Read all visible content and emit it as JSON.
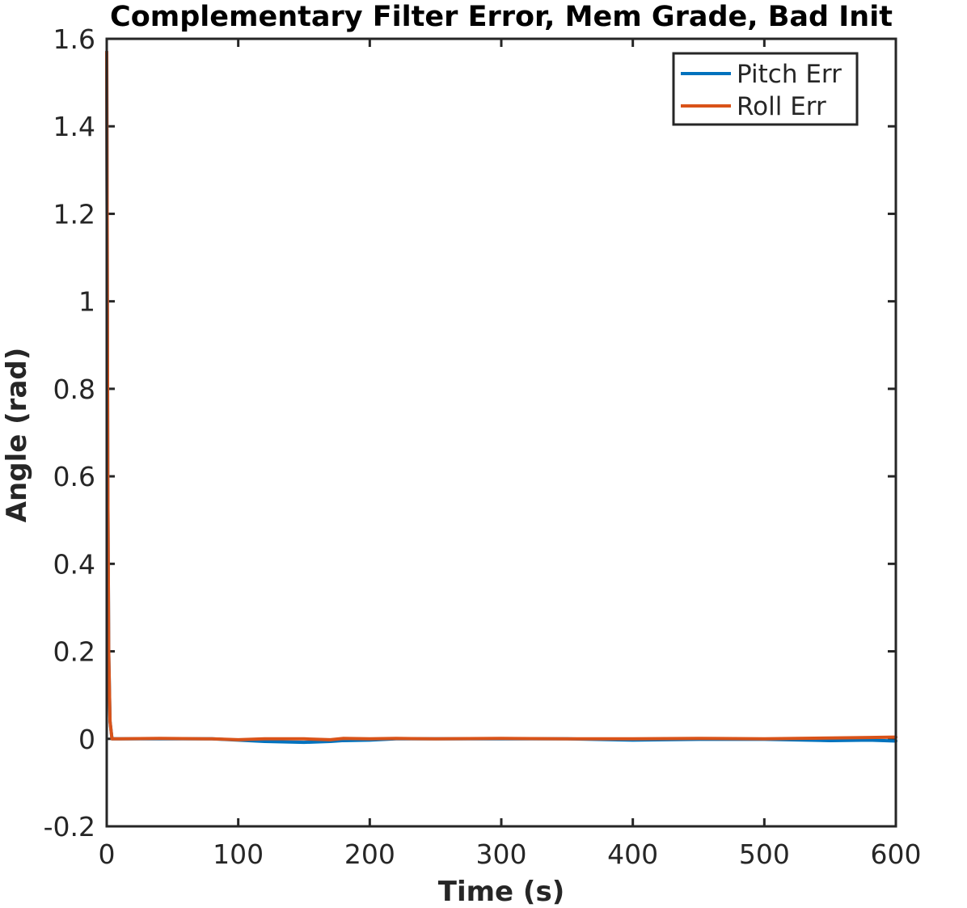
{
  "chart_data": {
    "type": "line",
    "title": "Complementary Filter Error, Mem Grade, Bad Init",
    "xlabel": "Time (s)",
    "ylabel": "Angle (rad)",
    "xlim": [
      0,
      600
    ],
    "ylim": [
      -0.2,
      1.6
    ],
    "xticks": [
      0,
      100,
      200,
      300,
      400,
      500,
      600
    ],
    "xtick_labels": [
      "0",
      "100",
      "200",
      "300",
      "400",
      "500",
      "600"
    ],
    "yticks": [
      -0.2,
      0,
      0.2,
      0.4,
      0.6,
      0.8,
      1,
      1.2,
      1.4,
      1.6
    ],
    "ytick_labels": [
      "-0.2",
      "0",
      "0.2",
      "0.4",
      "0.6",
      "0.8",
      "1",
      "1.2",
      "1.4",
      "1.6"
    ],
    "grid": false,
    "box": true,
    "legend_position": "top-right",
    "series": [
      {
        "name": "Pitch Err",
        "color": "#0072BD",
        "x": [
          0,
          0.3,
          0.8,
          1.5,
          2.5,
          4,
          10,
          40,
          80,
          100,
          120,
          150,
          170,
          180,
          200,
          220,
          250,
          300,
          350,
          400,
          450,
          500,
          550,
          580,
          600
        ],
        "y": [
          1.57,
          1.2,
          0.6,
          0.2,
          0.04,
          0.0,
          0.0,
          0.0,
          0.0,
          -0.003,
          -0.006,
          -0.008,
          -0.006,
          -0.004,
          -0.003,
          0.0,
          0.0,
          0.0,
          0.0,
          -0.003,
          -0.001,
          -0.001,
          -0.004,
          -0.003,
          -0.005
        ]
      },
      {
        "name": "Roll Err",
        "color": "#D95319",
        "x": [
          0,
          0.3,
          0.8,
          1.5,
          2.5,
          4,
          10,
          40,
          80,
          100,
          120,
          150,
          170,
          180,
          200,
          220,
          250,
          300,
          350,
          400,
          450,
          500,
          550,
          580,
          600
        ],
        "y": [
          1.57,
          1.2,
          0.6,
          0.2,
          0.04,
          0.0,
          0.0,
          0.001,
          0.0,
          -0.002,
          0.0,
          0.0,
          -0.002,
          0.001,
          0.0,
          0.001,
          0.0,
          0.001,
          0.0,
          0.0,
          0.001,
          0.0,
          0.002,
          0.003,
          0.004
        ]
      }
    ]
  }
}
